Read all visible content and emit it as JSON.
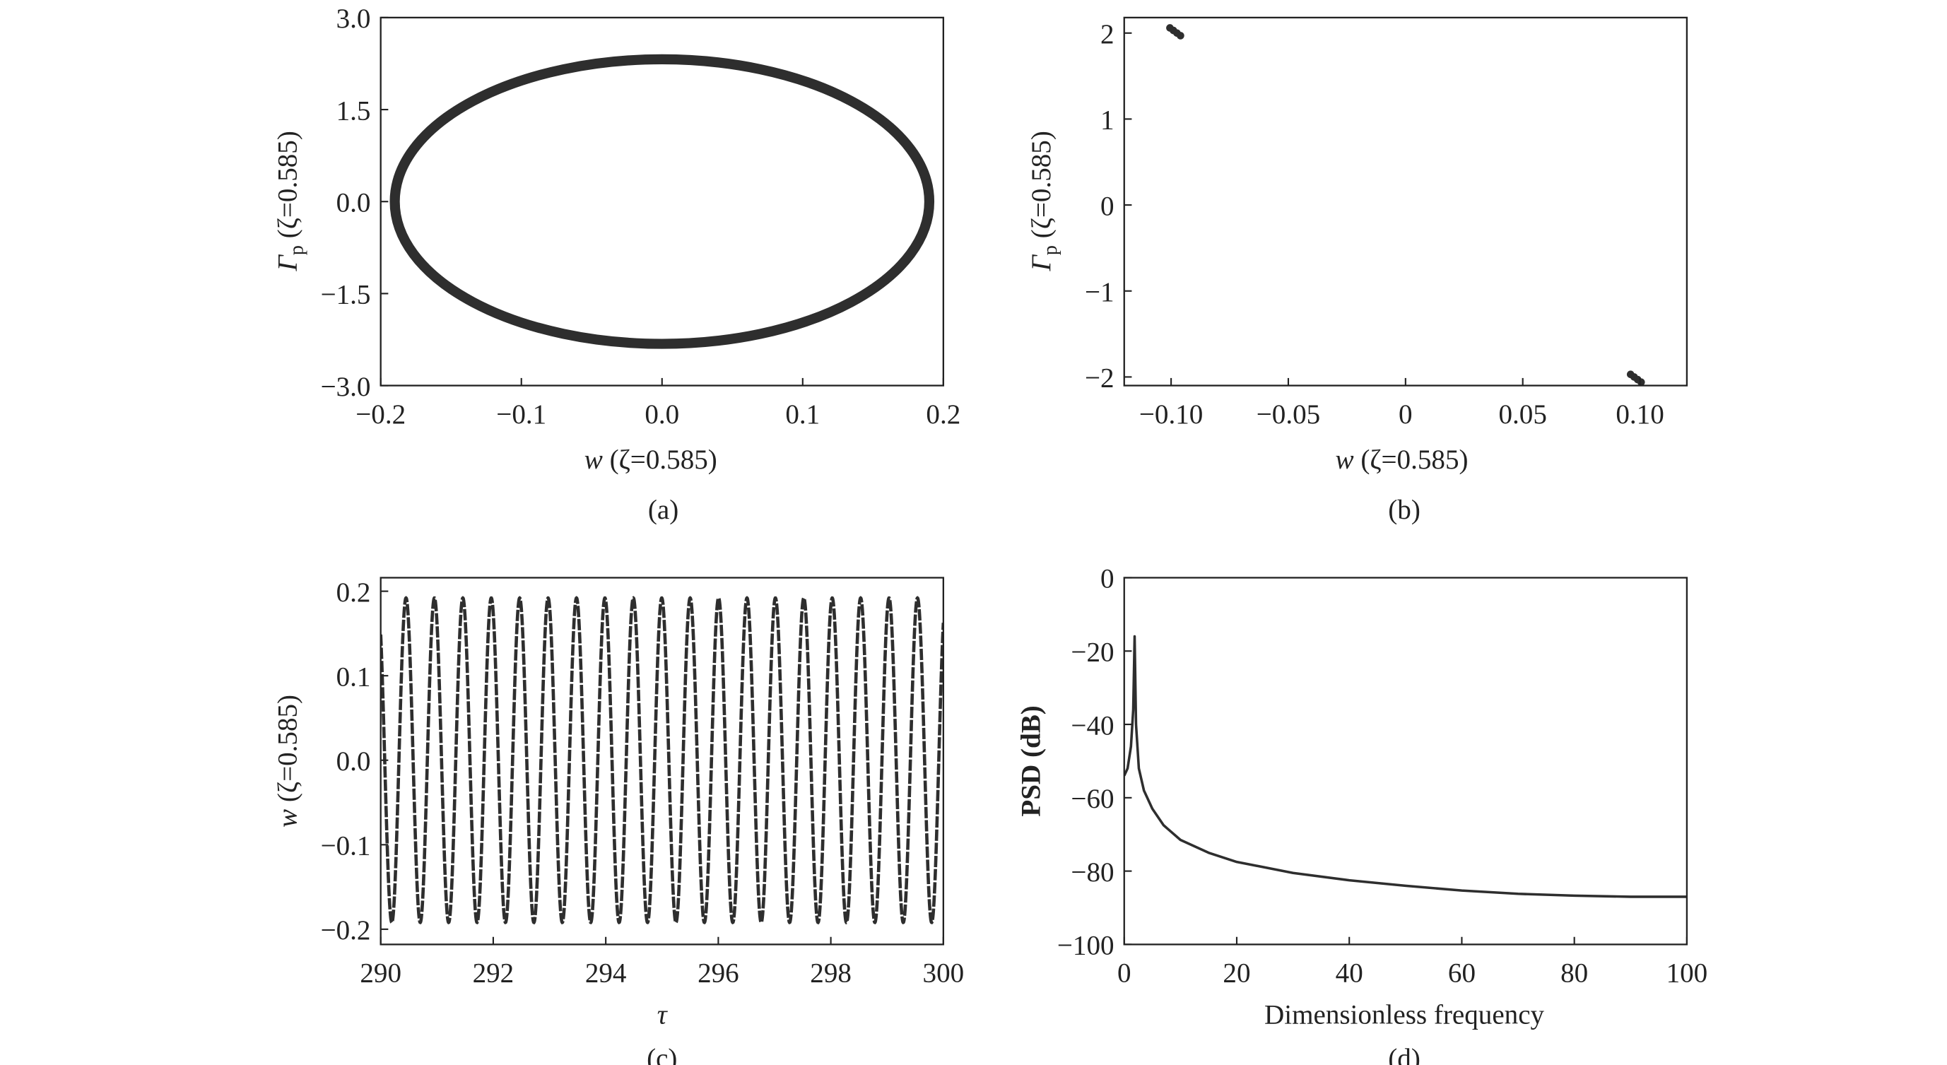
{
  "chart_data": [
    {
      "id": "a",
      "type": "line",
      "caption": "(a)",
      "xlabel": {
        "var": "w",
        "param": " (ζ=0.585)"
      },
      "ylabel": {
        "var": "Γ",
        "sub": "p",
        "param": " (ζ=0.585)"
      },
      "xlim": [
        -0.2,
        0.2
      ],
      "ylim": [
        -3.0,
        3.0
      ],
      "xticks": [
        -0.2,
        -0.1,
        0.0,
        0.1,
        0.2
      ],
      "xtick_labels": [
        "−0.2",
        "−0.1",
        "0.0",
        "0.1",
        "0.2"
      ],
      "yticks": [
        3.0,
        1.5,
        0.0,
        -1.5,
        -3.0
      ],
      "ytick_labels": [
        "3.0",
        "1.5",
        "0.0",
        "−1.5",
        "−3.0"
      ],
      "series": [
        {
          "name": "phase trajectory",
          "shape": "closed orbit",
          "w_amplitude": 0.19,
          "gamma_amplitude": 2.32,
          "center": [
            0.0,
            0.0
          ]
        }
      ],
      "color": "#2e2e2e"
    },
    {
      "id": "b",
      "type": "scatter",
      "caption": "(b)",
      "xlabel": {
        "var": "w",
        "param": " (ζ=0.585)"
      },
      "ylabel": {
        "var": "Γ",
        "sub": "p",
        "param": " (ζ=0.585)"
      },
      "xlim": [
        -0.12,
        0.12
      ],
      "ylim": [
        -2.1,
        2.18
      ],
      "xticks": [
        -0.1,
        -0.05,
        0,
        0.05,
        0.1
      ],
      "xtick_labels": [
        "−0.10",
        "−0.05",
        "0",
        "0.05",
        "0.10"
      ],
      "yticks": [
        2,
        1,
        0,
        -1,
        -2
      ],
      "ytick_labels": [
        "2",
        "1",
        "0",
        "−1",
        "−2"
      ],
      "points": [
        [
          -0.1005,
          2.06
        ],
        [
          -0.099,
          2.03
        ],
        [
          -0.0975,
          2.0
        ],
        [
          -0.096,
          1.97
        ],
        [
          0.096,
          -1.97
        ],
        [
          0.0975,
          -2.0
        ],
        [
          0.099,
          -2.03
        ],
        [
          0.1005,
          -2.06
        ]
      ],
      "color": "#2e2e2e"
    },
    {
      "id": "c",
      "type": "line",
      "caption": "(c)",
      "xlabel": {
        "var": "τ"
      },
      "ylabel": {
        "var": "w",
        "param": " (ζ=0.585)"
      },
      "xlim": [
        290,
        300
      ],
      "ylim": [
        -0.218,
        0.216
      ],
      "xticks": [
        290,
        292,
        294,
        296,
        298,
        300
      ],
      "xtick_labels": [
        "290",
        "292",
        "294",
        "296",
        "298",
        "300"
      ],
      "yticks": [
        0.2,
        0.1,
        0.0,
        -0.1,
        -0.2
      ],
      "ytick_labels": [
        "0.2",
        "0.1",
        "0.0",
        "−0.1",
        "−0.2"
      ],
      "series": [
        {
          "name": "w(τ)",
          "form": "sinusoid",
          "amplitude": 0.192,
          "period": 0.505,
          "first_peak": 290.45
        }
      ],
      "color": "#2e2e2e"
    },
    {
      "id": "d",
      "type": "line",
      "caption": "(d)",
      "xlabel": {
        "var": "Dimensionless frequency"
      },
      "ylabel": {
        "var": "PSD (dB)"
      },
      "xlim": [
        0,
        100
      ],
      "ylim": [
        -100,
        0
      ],
      "xticks": [
        0,
        20,
        40,
        60,
        80,
        100
      ],
      "xtick_labels": [
        "0",
        "20",
        "40",
        "60",
        "80",
        "100"
      ],
      "yticks": [
        0,
        -20,
        -40,
        -60,
        -80,
        -100
      ],
      "ytick_labels": [
        "0",
        "−20",
        "−40",
        "−60",
        "−80",
        "−100"
      ],
      "series": [
        {
          "name": "PSD",
          "x": [
            0,
            0.6,
            1.2,
            1.6,
            1.85,
            2.1,
            2.6,
            3.5,
            5,
            7,
            10,
            15,
            20,
            30,
            40,
            50,
            60,
            70,
            80,
            90,
            100
          ],
          "y": [
            -54,
            -52,
            -46,
            -36,
            -16,
            -40,
            -52,
            -58,
            -63,
            -67.5,
            -71.5,
            -75,
            -77.5,
            -80.5,
            -82.5,
            -84,
            -85.3,
            -86.2,
            -86.7,
            -87,
            -87
          ]
        }
      ],
      "color": "#2e2e2e"
    }
  ]
}
